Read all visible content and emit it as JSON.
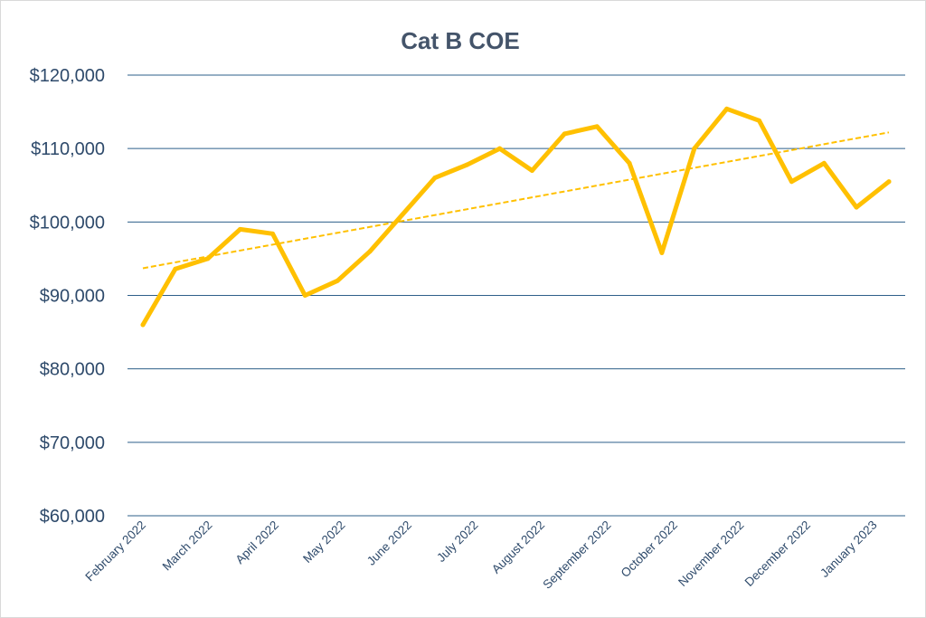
{
  "chart_data": {
    "type": "line",
    "title": "Cat B COE",
    "xlabel": "",
    "ylabel": "",
    "ylim": [
      60000,
      120000
    ],
    "yticks": [
      60000,
      70000,
      80000,
      90000,
      100000,
      110000,
      120000
    ],
    "ytick_labels": [
      "$60,000",
      "$70,000",
      "$80,000",
      "$90,000",
      "$100,000",
      "$110,000",
      "$120,000"
    ],
    "x_labels": [
      "February 2022",
      "March 2022",
      "April 2022",
      "May 2022",
      "June 2022",
      "July 2022",
      "August 2022",
      "September 2022",
      "October 2022",
      "November 2022",
      "December 2022",
      "January 2023"
    ],
    "grid": true,
    "legend": "none",
    "series": [
      {
        "color": "#ffc000",
        "values": [
          86000,
          93600,
          95000,
          99000,
          98400,
          90000,
          92000,
          96000,
          101000,
          106000,
          107800,
          110000,
          107000,
          112000,
          113000,
          108000,
          95800,
          110000,
          115400,
          113800,
          105500,
          108000,
          102000,
          105500
        ]
      }
    ],
    "trendline": {
      "style": "dashed",
      "color": "#ffc000",
      "start": 93700,
      "end": 112200
    },
    "colors": {
      "gridline": "#2e5f8a",
      "text": "#2e4a6b",
      "title": "#44546a"
    }
  }
}
